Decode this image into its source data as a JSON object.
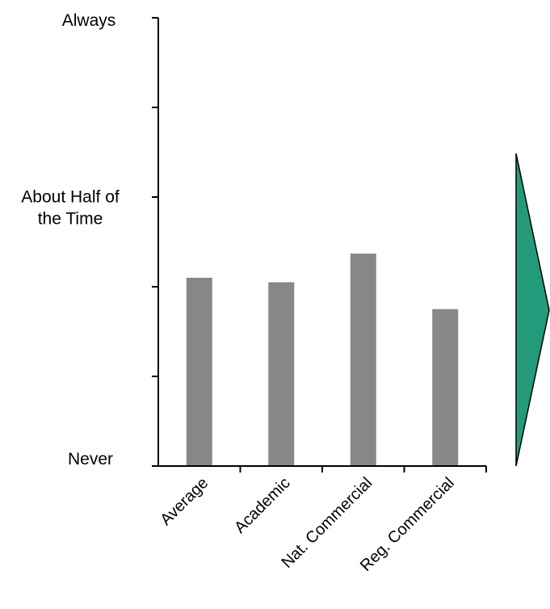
{
  "chart_data": {
    "type": "bar",
    "title": "",
    "xlabel": "",
    "ylabel": "",
    "categories": [
      "Average",
      "Academic",
      "Nat. Commercial",
      "Reg. Commercial"
    ],
    "values": [
      2.1,
      2.05,
      2.37,
      1.75
    ],
    "ylim": [
      0,
      5
    ],
    "y_tick_count": 6,
    "y_tick_labels": [
      {
        "value": 0,
        "lines": [
          "Never"
        ]
      },
      {
        "value": 2.5,
        "lines": [
          "About Half of",
          "the Time"
        ]
      },
      {
        "value": 5,
        "lines": [
          "Always"
        ]
      }
    ],
    "bar_color": "#878787",
    "bar_shadow_color": "#c8c8c8",
    "grid": false,
    "legend": "none",
    "arrow": {
      "direction": "right",
      "color": "#239b7b",
      "stroke": "#000000"
    }
  }
}
